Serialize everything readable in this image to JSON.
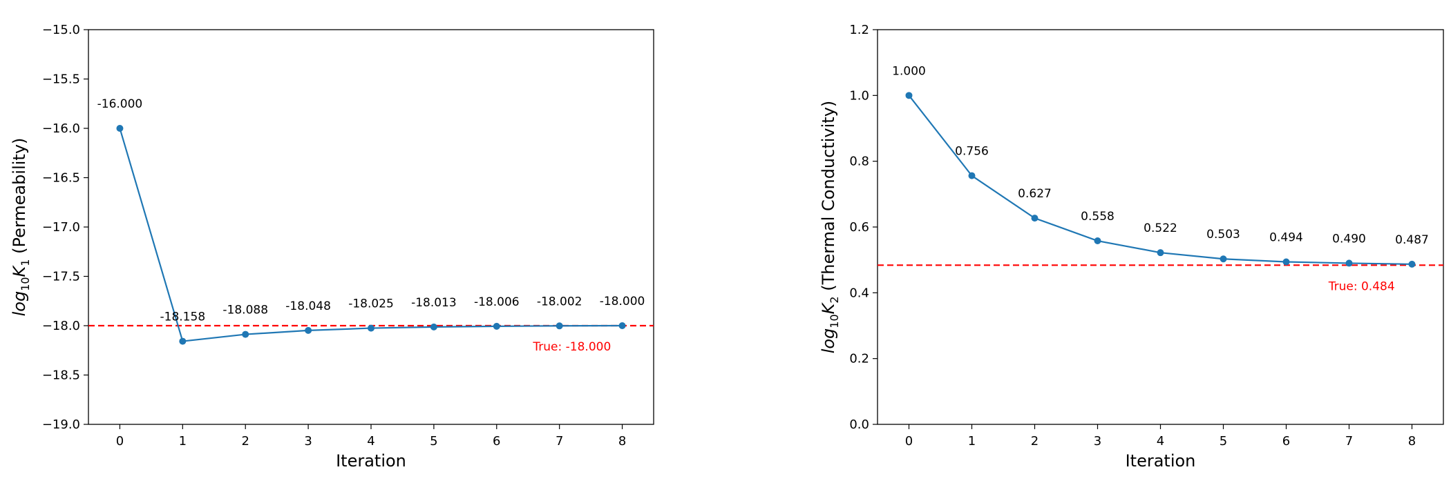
{
  "chart_data": [
    {
      "type": "line",
      "xlabel": "Iteration",
      "ylabel_parts": [
        "log",
        "10",
        "K",
        "1",
        " (Permeability)"
      ],
      "x": [
        0,
        1,
        2,
        3,
        4,
        5,
        6,
        7,
        8
      ],
      "xticks": [
        "0",
        "1",
        "2",
        "3",
        "4",
        "5",
        "6",
        "7",
        "8"
      ],
      "ylim": [
        -19.0,
        -15.0
      ],
      "yticks": [
        "−19.0",
        "−18.5",
        "−18.0",
        "−17.5",
        "−17.0",
        "−16.5",
        "−16.0",
        "−15.5",
        "−15.0"
      ],
      "series": [
        {
          "values": [
            -16.0,
            -18.158,
            -18.088,
            -18.048,
            -18.025,
            -18.013,
            -18.006,
            -18.002,
            -18.0
          ],
          "color": "#1f77b4"
        }
      ],
      "data_labels": [
        "-16.000",
        "-18.158",
        "-18.088",
        "-18.048",
        "-18.025",
        "-18.013",
        "-18.006",
        "-18.002",
        "-18.000"
      ],
      "reference_line": {
        "value": -18.0,
        "label": "True: -18.000",
        "color": "#ff0000",
        "style": "dashed"
      },
      "grid": false
    },
    {
      "type": "line",
      "xlabel": "Iteration",
      "ylabel_parts": [
        "log",
        "10",
        "K",
        "2",
        " (Thermal Conductivity)"
      ],
      "x": [
        0,
        1,
        2,
        3,
        4,
        5,
        6,
        7,
        8
      ],
      "xticks": [
        "0",
        "1",
        "2",
        "3",
        "4",
        "5",
        "6",
        "7",
        "8"
      ],
      "ylim": [
        0.0,
        1.2
      ],
      "yticks": [
        "0.0",
        "0.2",
        "0.4",
        "0.6",
        "0.8",
        "1.0",
        "1.2"
      ],
      "series": [
        {
          "values": [
            1.0,
            0.756,
            0.627,
            0.558,
            0.522,
            0.503,
            0.494,
            0.49,
            0.487
          ],
          "color": "#1f77b4"
        }
      ],
      "data_labels": [
        "1.000",
        "0.756",
        "0.627",
        "0.558",
        "0.522",
        "0.503",
        "0.494",
        "0.490",
        "0.487"
      ],
      "reference_line": {
        "value": 0.484,
        "label": "True: 0.484",
        "color": "#ff0000",
        "style": "dashed"
      },
      "grid": false
    }
  ]
}
